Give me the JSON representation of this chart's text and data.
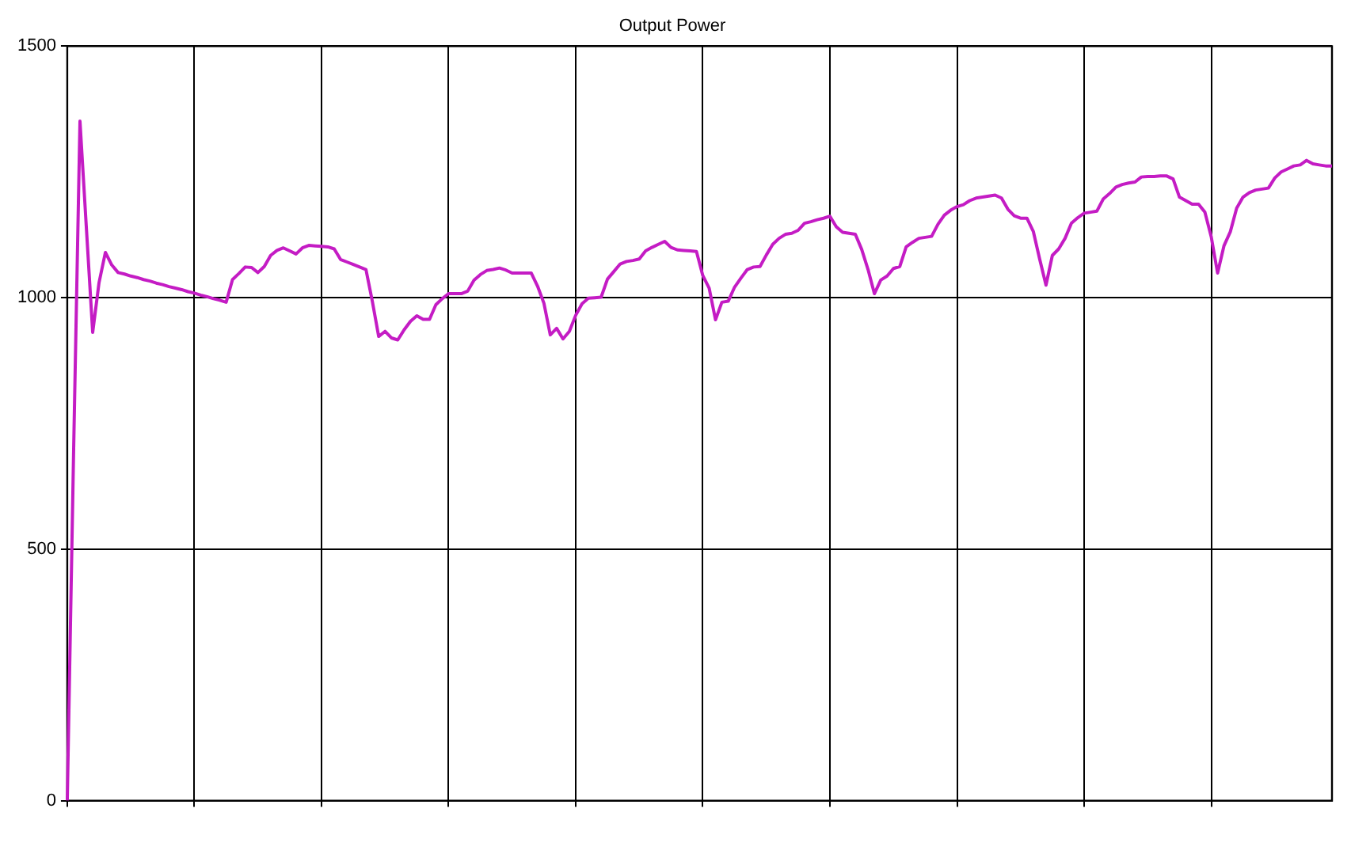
{
  "chart_data": {
    "type": "line",
    "title": "Output Power",
    "categories": [
      null,
      null,
      null,
      null,
      null,
      null,
      null,
      null,
      null,
      null,
      null,
      null,
      null,
      null,
      null,
      null,
      null,
      null,
      null,
      null,
      null,
      null,
      null,
      null,
      null,
      null,
      null,
      null,
      null,
      null,
      null,
      null,
      null,
      null,
      null,
      null,
      null,
      null,
      null,
      null,
      null,
      null,
      null,
      null,
      null,
      null,
      null,
      null,
      null,
      null,
      null,
      null,
      null,
      null,
      null,
      null,
      null,
      null,
      null,
      null,
      null,
      null,
      null,
      null,
      null,
      null,
      null,
      null,
      null,
      null,
      null,
      null,
      null,
      null,
      null,
      null,
      null,
      null,
      null,
      null,
      null,
      null,
      null,
      null,
      null,
      null,
      null,
      null,
      null,
      null,
      null,
      null,
      null,
      null,
      null,
      null,
      null,
      null,
      null,
      null,
      null,
      null,
      null,
      null,
      null,
      null,
      null,
      null,
      null,
      null,
      null,
      null,
      null,
      null,
      null,
      null,
      null,
      null,
      null,
      null,
      null,
      null,
      null,
      null,
      null,
      null,
      null,
      null,
      null,
      null,
      null,
      null,
      null,
      null,
      null,
      null,
      null,
      null,
      null,
      null,
      null,
      null,
      null,
      null,
      null,
      null,
      null,
      null,
      null,
      null,
      null,
      null,
      null,
      null,
      null,
      null,
      null,
      null,
      null,
      null,
      null,
      null,
      null,
      null,
      null,
      null,
      null,
      null,
      null,
      null,
      null,
      null,
      null,
      null,
      null,
      null,
      null,
      null,
      null,
      null,
      null,
      null,
      null,
      null,
      null,
      null,
      null,
      null,
      null,
      null,
      null,
      null,
      null,
      null,
      null,
      null,
      null,
      null,
      null,
      null
    ],
    "series": [
      {
        "color": "#c41cc4",
        "values": [
          0,
          696,
          1351,
          1140,
          931,
          1030,
          1090,
          1065,
          1050,
          1047,
          1043,
          1040,
          1036,
          1033,
          1029,
          1026,
          1022,
          1019,
          1016,
          1012,
          1009,
          1005,
          1002,
          998,
          995,
          991,
          1036,
          1048,
          1061,
          1060,
          1050,
          1062,
          1084,
          1094,
          1099,
          1093,
          1087,
          1099,
          1104,
          1103,
          1102,
          1101,
          1097,
          1076,
          1071,
          1066,
          1061,
          1056,
          993,
          923,
          933,
          920,
          916,
          936,
          953,
          964,
          957,
          957,
          986,
          998,
          1008,
          1008,
          1008,
          1013,
          1035,
          1046,
          1054,
          1056,
          1059,
          1055,
          1049,
          1049,
          1049,
          1049,
          1023,
          989,
          926,
          939,
          918,
          933,
          965,
          988,
          999,
          1000,
          1001,
          1037,
          1052,
          1067,
          1072,
          1074,
          1077,
          1093,
          1100,
          1106,
          1112,
          1100,
          1095,
          1094,
          1093,
          1092,
          1044,
          1019,
          956,
          991,
          993,
          1021,
          1039,
          1056,
          1061,
          1062,
          1085,
          1106,
          1118,
          1126,
          1128,
          1134,
          1148,
          1151,
          1155,
          1158,
          1162,
          1141,
          1130,
          1128,
          1126,
          1096,
          1056,
          1008,
          1035,
          1043,
          1058,
          1062,
          1101,
          1110,
          1118,
          1120,
          1122,
          1146,
          1164,
          1174,
          1181,
          1185,
          1193,
          1198,
          1200,
          1202,
          1204,
          1198,
          1176,
          1163,
          1158,
          1158,
          1132,
          1077,
          1025,
          1084,
          1097,
          1118,
          1148,
          1159,
          1168,
          1170,
          1172,
          1196,
          1207,
          1220,
          1225,
          1228,
          1230,
          1240,
          1241,
          1241,
          1242,
          1242,
          1236,
          1200,
          1193,
          1186,
          1186,
          1170,
          1121,
          1049,
          1103,
          1131,
          1178,
          1200,
          1209,
          1214,
          1216,
          1218,
          1238,
          1250,
          1256,
          1262,
          1264,
          1273,
          1266,
          1264,
          1262,
          1262
        ]
      }
    ],
    "ylim": [
      0,
      1500
    ],
    "yticks": [
      0,
      500,
      1000,
      1500
    ],
    "grid": true,
    "legend": false,
    "marker": "none",
    "line_style": "solid"
  }
}
